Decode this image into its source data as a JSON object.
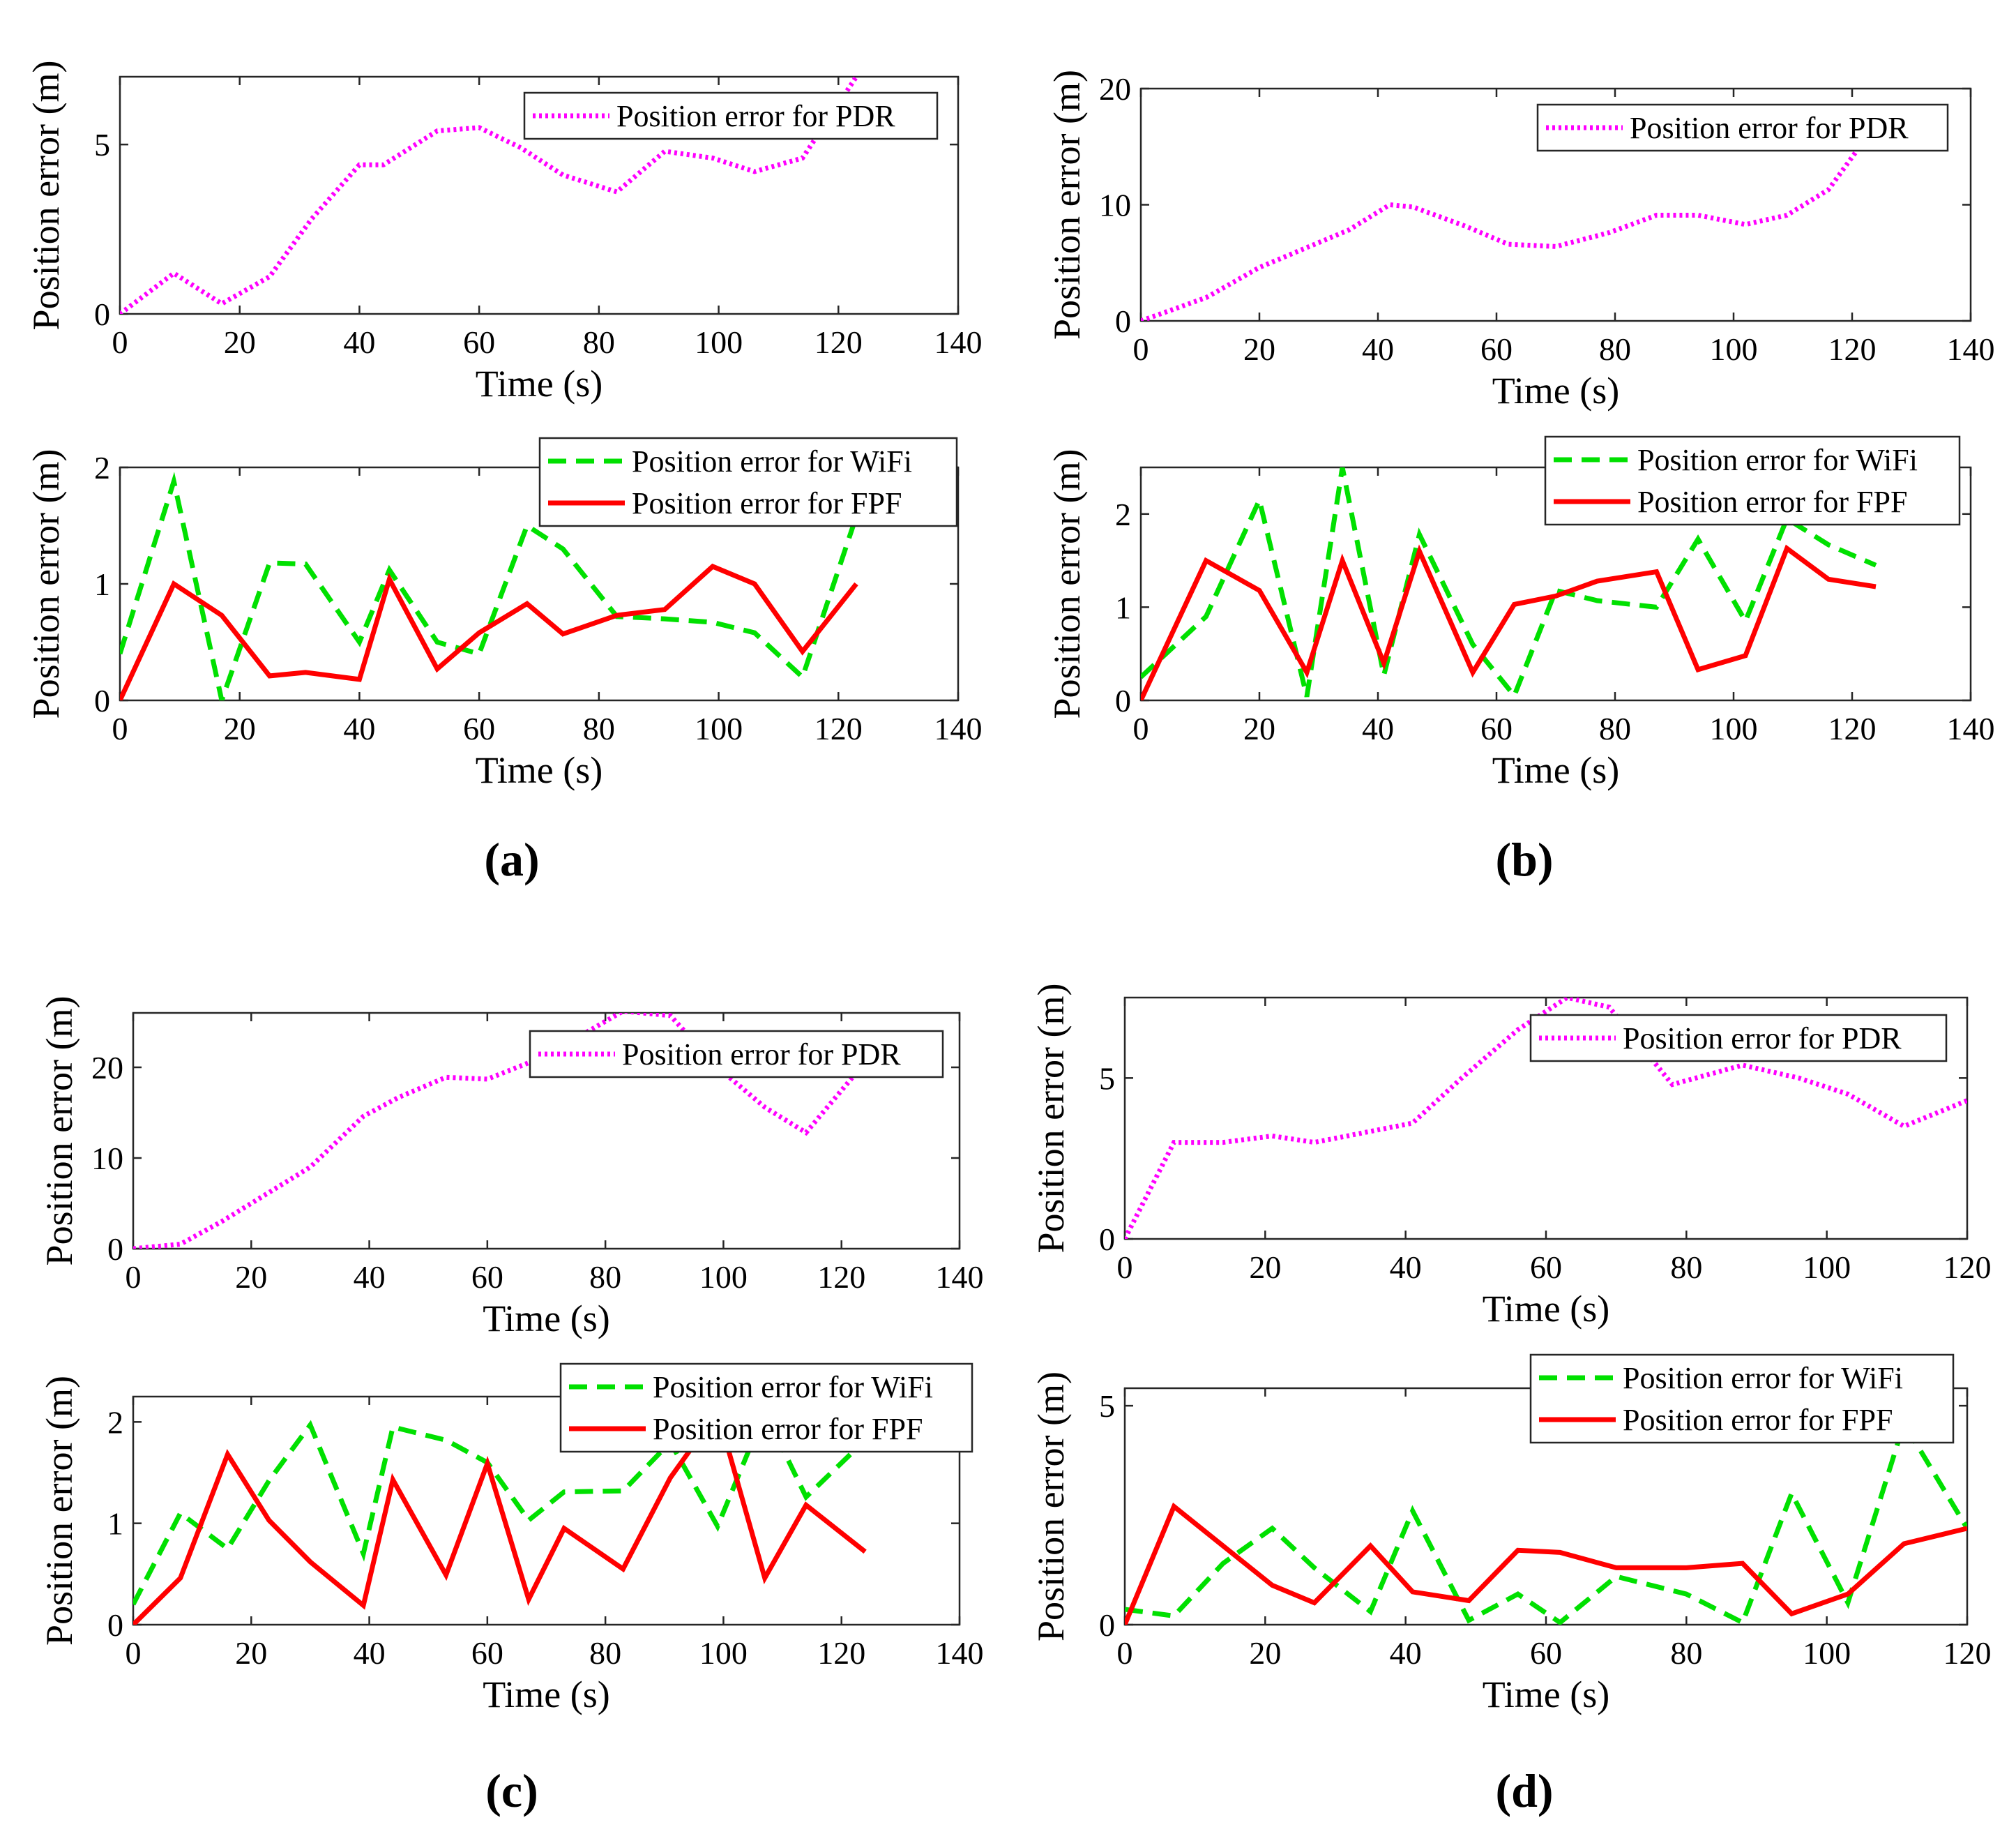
{
  "chart_data": [
    {
      "id": "a-top",
      "type": "line",
      "xlabel": "Time (s)",
      "ylabel": "Position error (m)",
      "xlim": [
        0,
        140
      ],
      "ylim": [
        0,
        7
      ],
      "xticks": [
        0,
        20,
        40,
        60,
        80,
        100,
        120,
        140
      ],
      "yticks": [
        0,
        5
      ],
      "series": [
        {
          "name": "Position error for PDR",
          "style": "dotted",
          "color": "#ff00ff",
          "x": [
            0,
            9,
            17,
            25,
            32,
            40,
            44,
            53,
            60,
            67,
            74,
            83,
            91,
            99,
            106,
            114,
            123
          ],
          "y": [
            0,
            1.2,
            0.3,
            1.1,
            2.8,
            4.4,
            4.4,
            5.4,
            5.5,
            4.9,
            4.1,
            3.6,
            4.8,
            4.6,
            4.2,
            4.6,
            7.0
          ]
        }
      ]
    },
    {
      "id": "a-bottom",
      "type": "line",
      "xlabel": "Time (s)",
      "ylabel": "Position error (m)",
      "xlim": [
        0,
        140
      ],
      "ylim": [
        0,
        2
      ],
      "xticks": [
        0,
        20,
        40,
        60,
        80,
        100,
        120,
        140
      ],
      "yticks": [
        0,
        1,
        2
      ],
      "series": [
        {
          "name": "Position error for WiFi",
          "style": "dashed",
          "color": "#00e000",
          "x": [
            0,
            9,
            17,
            25,
            31,
            40,
            45,
            53,
            60,
            68,
            74,
            83,
            91,
            99,
            106,
            114,
            123
          ],
          "y": [
            0.4,
            1.88,
            0,
            1.18,
            1.17,
            0.5,
            1.12,
            0.5,
            0.4,
            1.5,
            1.3,
            0.72,
            0.7,
            0.67,
            0.58,
            0.2,
            1.58
          ]
        },
        {
          "name": "Position error for FPF",
          "style": "solid",
          "color": "#ff0000",
          "x": [
            0,
            9,
            17,
            25,
            31,
            40,
            45,
            53,
            60,
            68,
            74,
            83,
            91,
            99,
            106,
            114,
            123
          ],
          "y": [
            0,
            1.0,
            0.73,
            0.21,
            0.24,
            0.18,
            1.04,
            0.27,
            0.58,
            0.83,
            0.57,
            0.73,
            0.78,
            1.15,
            1.0,
            0.42,
            1.0
          ]
        }
      ]
    },
    {
      "id": "b-top",
      "type": "line",
      "xlabel": "Time (s)",
      "ylabel": "Position error (m)",
      "xlim": [
        0,
        140
      ],
      "ylim": [
        0,
        20
      ],
      "xticks": [
        0,
        20,
        40,
        60,
        80,
        100,
        120,
        140
      ],
      "yticks": [
        0,
        10,
        20
      ],
      "series": [
        {
          "name": "Position error for PDR",
          "style": "dotted",
          "color": "#ff00ff",
          "x": [
            0,
            11,
            20,
            27,
            35,
            42,
            46,
            55,
            62,
            70,
            79,
            87,
            94,
            102,
            109,
            116,
            122
          ],
          "y": [
            0,
            2.0,
            4.6,
            6.1,
            7.8,
            10.0,
            9.8,
            8.1,
            6.6,
            6.4,
            7.6,
            9.1,
            9.1,
            8.3,
            9.1,
            11.3,
            15.5
          ]
        }
      ]
    },
    {
      "id": "b-bottom",
      "type": "line",
      "xlabel": "Time (s)",
      "ylabel": "Position error (m)",
      "xlim": [
        0,
        140
      ],
      "ylim": [
        0,
        2.5
      ],
      "xticks": [
        0,
        20,
        40,
        60,
        80,
        100,
        120,
        140
      ],
      "yticks": [
        0,
        1,
        2
      ],
      "series": [
        {
          "name": "Position error for WiFi",
          "style": "dashed",
          "color": "#00e000",
          "x": [
            0,
            11,
            20,
            28,
            34,
            41,
            47,
            56,
            63,
            70,
            77,
            87,
            94,
            102,
            109,
            116,
            124
          ],
          "y": [
            0.25,
            0.9,
            2.15,
            0.04,
            2.5,
            0.27,
            1.78,
            0.6,
            0.05,
            1.18,
            1.07,
            1.0,
            1.73,
            0.85,
            1.95,
            1.67,
            1.45
          ]
        },
        {
          "name": "Position error for FPF",
          "style": "solid",
          "color": "#ff0000",
          "x": [
            0,
            11,
            20,
            28,
            34,
            41,
            47,
            56,
            63,
            70,
            77,
            87,
            94,
            102,
            109,
            116,
            124
          ],
          "y": [
            0,
            1.5,
            1.18,
            0.3,
            1.5,
            0.4,
            1.6,
            0.3,
            1.03,
            1.12,
            1.28,
            1.38,
            0.33,
            0.48,
            1.63,
            1.3,
            1.22
          ]
        }
      ]
    },
    {
      "id": "c-top",
      "type": "line",
      "xlabel": "Time (s)",
      "ylabel": "Position error (m)",
      "xlim": [
        0,
        140
      ],
      "ylim": [
        0,
        26
      ],
      "xticks": [
        0,
        20,
        40,
        60,
        80,
        100,
        120,
        140
      ],
      "yticks": [
        0,
        10,
        20
      ],
      "series": [
        {
          "name": "Position error for PDR",
          "style": "dotted",
          "color": "#ff00ff",
          "x": [
            0,
            8,
            15,
            23,
            30,
            39,
            45,
            53,
            60,
            67,
            74,
            83,
            91,
            99,
            107,
            114,
            122
          ],
          "y": [
            0,
            0.5,
            3.0,
            6.2,
            9.0,
            14.6,
            16.7,
            18.9,
            18.7,
            20.5,
            22.8,
            26.2,
            25.7,
            20.0,
            15.6,
            12.8,
            19.0
          ]
        }
      ]
    },
    {
      "id": "c-bottom",
      "type": "line",
      "xlabel": "Time (s)",
      "ylabel": "Position error (m)",
      "xlim": [
        0,
        140
      ],
      "ylim": [
        0,
        2.25
      ],
      "xticks": [
        0,
        20,
        40,
        60,
        80,
        100,
        120,
        140
      ],
      "yticks": [
        0,
        1,
        2
      ],
      "series": [
        {
          "name": "Position error for WiFi",
          "style": "dashed",
          "color": "#00e000",
          "x": [
            0,
            8,
            16,
            23,
            30,
            39,
            44,
            53,
            60,
            67,
            73,
            83,
            91,
            99,
            107,
            114,
            124
          ],
          "y": [
            0.2,
            1.1,
            0.75,
            1.42,
            1.97,
            0.7,
            1.95,
            1.82,
            1.6,
            1.03,
            1.31,
            1.32,
            1.8,
            0.97,
            2.1,
            1.26,
            1.82
          ]
        },
        {
          "name": "Position error for FPF",
          "style": "solid",
          "color": "#ff0000",
          "x": [
            0,
            8,
            16,
            23,
            30,
            39,
            44,
            53,
            60,
            67,
            73,
            83,
            91,
            99,
            107,
            114,
            124
          ],
          "y": [
            0,
            0.46,
            1.68,
            1.03,
            0.62,
            0.19,
            1.43,
            0.49,
            1.59,
            0.25,
            0.95,
            0.55,
            1.45,
            2.1,
            0.46,
            1.18,
            0.72
          ]
        }
      ]
    },
    {
      "id": "d-top",
      "type": "line",
      "xlabel": "Time (s)",
      "ylabel": "Position error (m)",
      "xlim": [
        0,
        120
      ],
      "ylim": [
        0,
        7.5
      ],
      "xticks": [
        0,
        20,
        40,
        60,
        80,
        100,
        120
      ],
      "yticks": [
        0,
        5
      ],
      "series": [
        {
          "name": "Position error for PDR",
          "style": "dotted",
          "color": "#ff00ff",
          "x": [
            0,
            7,
            14,
            21,
            27,
            34,
            41,
            48,
            56,
            63,
            69,
            78,
            88,
            96,
            103,
            111,
            120
          ],
          "y": [
            0,
            3.0,
            3.0,
            3.2,
            3.0,
            3.3,
            3.6,
            5.0,
            6.5,
            7.5,
            7.2,
            4.8,
            5.4,
            5.0,
            4.5,
            3.5,
            4.3
          ]
        }
      ]
    },
    {
      "id": "d-bottom",
      "type": "line",
      "xlabel": "Time (s)",
      "ylabel": "Position error (m)",
      "xlim": [
        0,
        120
      ],
      "ylim": [
        0,
        5.4
      ],
      "xticks": [
        0,
        20,
        40,
        60,
        80,
        100,
        120
      ],
      "yticks": [
        0,
        5
      ],
      "series": [
        {
          "name": "Position error for WiFi",
          "style": "dashed",
          "color": "#00e000",
          "x": [
            0,
            7,
            14,
            21,
            27,
            35,
            41,
            49,
            56,
            62,
            70,
            80,
            88,
            95,
            103,
            111,
            120
          ],
          "y": [
            0.35,
            0.2,
            1.4,
            2.2,
            1.3,
            0.3,
            2.6,
            0.1,
            0.7,
            0.05,
            1.1,
            0.7,
            0.05,
            3.0,
            0.5,
            4.6,
            2.2
          ]
        },
        {
          "name": "Position error for FPF",
          "style": "solid",
          "color": "#ff0000",
          "x": [
            0,
            7,
            14,
            21,
            27,
            35,
            41,
            49,
            56,
            62,
            70,
            80,
            88,
            95,
            103,
            111,
            120
          ],
          "y": [
            0,
            2.7,
            1.8,
            0.9,
            0.5,
            1.8,
            0.75,
            0.55,
            1.7,
            1.65,
            1.3,
            1.3,
            1.4,
            0.25,
            0.7,
            1.85,
            2.2
          ]
        }
      ]
    }
  ],
  "panels": {
    "a": {
      "label": "(a)"
    },
    "b": {
      "label": "(b)"
    },
    "c": {
      "label": "(c)"
    },
    "d": {
      "label": "(d)"
    }
  },
  "colors": {
    "pdr": "#ff00ff",
    "wifi": "#00e000",
    "fpf": "#ff0000",
    "axis": "#262626"
  }
}
